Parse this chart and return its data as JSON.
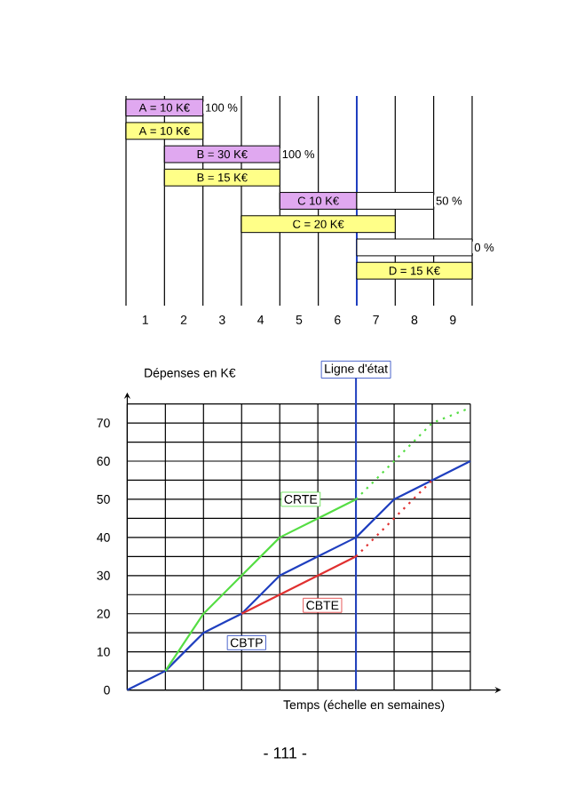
{
  "chart_data": [
    {
      "type": "bar",
      "orientation": "horizontal",
      "categories": [
        "A = 10 K€",
        "A = 10 K€",
        "B = 30 K€",
        "B = 15 K€",
        "C 10 K€",
        "C = 20 K€",
        null,
        "D = 15 K€"
      ],
      "series": [
        {
          "color": "#e0a8f0",
          "base": [
            0,
            null,
            1,
            null,
            4,
            null,
            null,
            null
          ],
          "values": [
            2,
            null,
            3,
            null,
            2,
            null,
            null,
            null
          ]
        },
        {
          "color": "#ffffff",
          "base": [
            null,
            null,
            null,
            null,
            6,
            null,
            6,
            null
          ],
          "values": [
            null,
            null,
            null,
            null,
            2,
            null,
            3,
            null
          ]
        },
        {
          "color": "#ffff88",
          "base": [
            null,
            0,
            null,
            1,
            null,
            3,
            null,
            6
          ],
          "values": [
            null,
            2,
            null,
            3,
            null,
            4,
            null,
            3
          ]
        }
      ],
      "xlim": [
        0,
        9
      ],
      "xticks": [
        {
          "value": 0.5,
          "label": "1"
        },
        {
          "value": 1.5,
          "label": "2"
        },
        {
          "value": 2.5,
          "label": "3"
        },
        {
          "value": 3.5,
          "label": "4"
        },
        {
          "value": 4.5,
          "label": "5"
        },
        {
          "value": 5.5,
          "label": "6"
        },
        {
          "value": 6.5,
          "label": "7"
        },
        {
          "value": 7.5,
          "label": "8"
        },
        {
          "value": 8.5,
          "label": "9"
        }
      ],
      "tick_labels": "x",
      "grid": "x",
      "ref_lines": [
        {
          "axis": "x",
          "value": 6,
          "color": "#1f3fbf"
        }
      ],
      "annotations": [
        "100 %",
        "100 %",
        "50 %",
        "0 %"
      ]
    },
    {
      "type": "line",
      "ylabel": "Dépenses en K€",
      "xlabel": "Temps (échelle en semaines)",
      "series": [
        {
          "name": "CBTP",
          "color": "#1f3fbf",
          "x": [
            0,
            1,
            2,
            3,
            4,
            5,
            6,
            7,
            8,
            9
          ],
          "values": [
            0,
            5,
            15,
            20,
            30,
            35,
            40,
            50,
            55,
            60
          ]
        },
        {
          "name": "CRTE",
          "color": "#55dd44",
          "x": [
            1,
            2,
            3,
            4,
            5,
            6
          ],
          "values": [
            5,
            20,
            30,
            40,
            45,
            50
          ]
        },
        {
          "color": "#55dd44",
          "line_style": "dotted",
          "x": [
            6,
            7,
            8,
            9
          ],
          "values": [
            50,
            60,
            70,
            74
          ]
        },
        {
          "name": "CBTE",
          "color": "#e03030",
          "x": [
            3,
            4,
            5,
            6
          ],
          "values": [
            20,
            25,
            30,
            35
          ]
        },
        {
          "color": "#e03030",
          "line_style": "dotted",
          "x": [
            6,
            7,
            8
          ],
          "values": [
            35,
            45,
            55
          ]
        }
      ],
      "xlim": [
        0,
        9
      ],
      "xticks": [
        {
          "value": 0,
          "label": null
        },
        {
          "value": 1,
          "label": null
        },
        {
          "value": 2,
          "label": null
        },
        {
          "value": 3,
          "label": null
        },
        {
          "value": 4,
          "label": null
        },
        {
          "value": 5,
          "label": null
        },
        {
          "value": 6,
          "label": null
        },
        {
          "value": 7,
          "label": null
        },
        {
          "value": 8,
          "label": null
        },
        {
          "value": 9,
          "label": null
        }
      ],
      "ylim": [
        0,
        75
      ],
      "yticks": [
        0,
        {
          "value": 5,
          "label": null
        },
        10,
        {
          "value": 15,
          "label": null
        },
        20,
        {
          "value": 25,
          "label": null
        },
        30,
        {
          "value": 35,
          "label": null
        },
        40,
        {
          "value": 45,
          "label": null
        },
        50,
        {
          "value": 55,
          "label": null
        },
        60,
        {
          "value": 65,
          "label": null
        },
        70,
        {
          "value": 75,
          "label": null
        }
      ],
      "tick_labels": "y",
      "grid": true,
      "ref_lines": [
        {
          "axis": "x",
          "value": 6,
          "label": "Ligne d'état",
          "color": "#1f3fbf"
        }
      ],
      "annotations": [
        "- 111 -"
      ]
    }
  ]
}
